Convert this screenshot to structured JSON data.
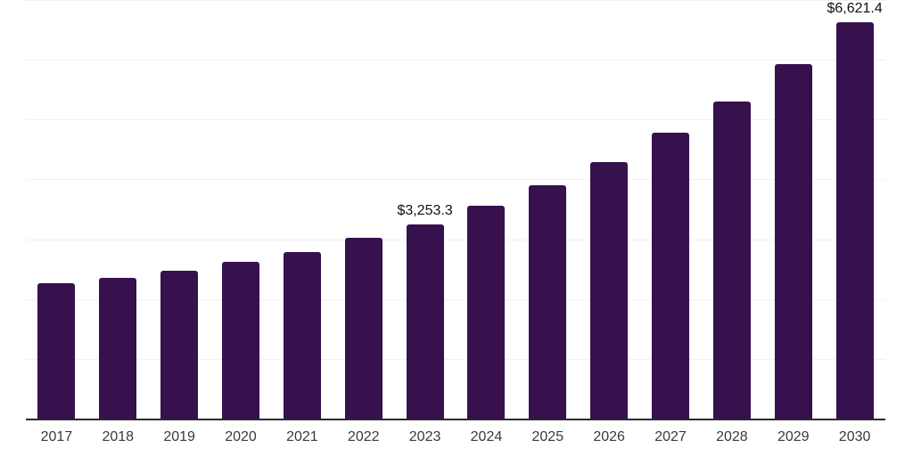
{
  "chart": {
    "background_color": "#ffffff",
    "bar_color": "#36114e",
    "grid_color": "#f1f1f1",
    "axis_line_color": "#2b2b2b",
    "tick_label_color": "#3a3a3a",
    "data_label_color": "#101010"
  },
  "chart_data": {
    "type": "bar",
    "title": "",
    "xlabel": "",
    "ylabel": "",
    "legend": "none",
    "grid": true,
    "ylim": [
      0,
      7000
    ],
    "gridline_values": [
      1000,
      2000,
      3000,
      4000,
      5000,
      6000,
      7000
    ],
    "categories": [
      "2017",
      "2018",
      "2019",
      "2020",
      "2021",
      "2022",
      "2023",
      "2024",
      "2025",
      "2026",
      "2027",
      "2028",
      "2029",
      "2030"
    ],
    "values": [
      2260,
      2360,
      2480,
      2620,
      2790,
      3025,
      3253.3,
      3560,
      3895,
      4290,
      4785,
      5300,
      5935,
      6621.4
    ],
    "data_labels": {
      "2023": "$3,253.3",
      "2030": "$6,621.4"
    }
  }
}
